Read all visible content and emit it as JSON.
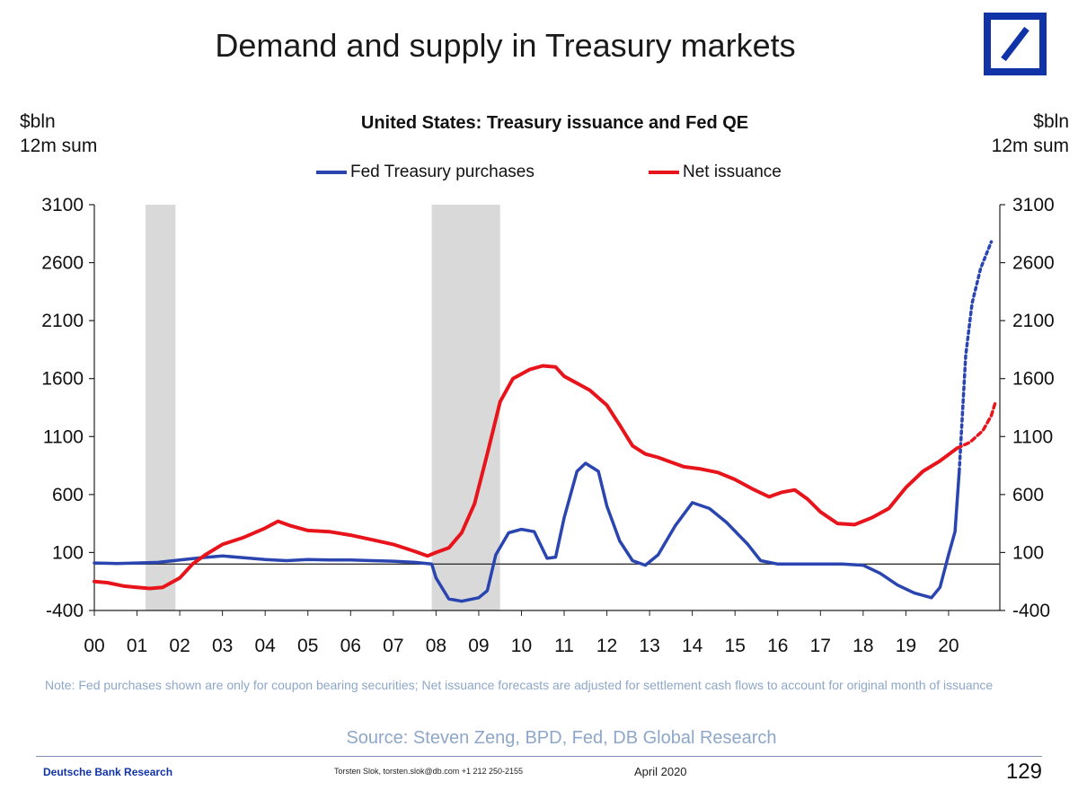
{
  "slide": {
    "title": "Demand and supply in Treasury markets",
    "source": "Source: Steven Zeng, BPD, Fed, DB Global Research",
    "note": "Note: Fed purchases shown are only for coupon bearing securities; Net issuance forecasts are adjusted for settlement cash flows to account for original month of issuance",
    "footer_org": "Deutsche Bank Research",
    "footer_contact": "Torsten Slok, torsten.slok@db.com  +1 212 250-2155",
    "footer_date": "April 2020",
    "page_number": "129"
  },
  "colors": {
    "fed": "#2a45b0",
    "net": "#e8141c",
    "recession": "#d9d9d9",
    "logo": "#1133a8"
  },
  "logo_icon": "deutsche-bank-slash-logo",
  "chart_data": {
    "type": "line",
    "title": "United States: Treasury issuance and Fed QE",
    "ylabel_left": "$bln\n12m sum",
    "ylabel_right": "$bln\n12m sum",
    "ylim": [
      -400,
      3100
    ],
    "y_ticks": [
      -400,
      100,
      600,
      1100,
      1600,
      2100,
      2600,
      3100
    ],
    "x_range": [
      2000,
      2021.2
    ],
    "x_ticks": [
      "00",
      "01",
      "02",
      "03",
      "04",
      "05",
      "06",
      "07",
      "08",
      "09",
      "10",
      "11",
      "12",
      "13",
      "14",
      "15",
      "16",
      "17",
      "18",
      "19",
      "20"
    ],
    "zero_line": 0,
    "recession_shading": [
      [
        2001.2,
        2001.9
      ],
      [
        2007.9,
        2009.5
      ]
    ],
    "legend_position": "top",
    "series": [
      {
        "name": "Fed Treasury purchases",
        "color_key": "fed",
        "points": [
          [
            2000.0,
            10
          ],
          [
            2000.5,
            5
          ],
          [
            2001.0,
            10
          ],
          [
            2001.5,
            15
          ],
          [
            2002.0,
            35
          ],
          [
            2002.5,
            55
          ],
          [
            2003.0,
            70
          ],
          [
            2003.5,
            55
          ],
          [
            2004.0,
            40
          ],
          [
            2004.5,
            30
          ],
          [
            2005.0,
            40
          ],
          [
            2005.5,
            35
          ],
          [
            2006.0,
            35
          ],
          [
            2006.5,
            30
          ],
          [
            2007.0,
            25
          ],
          [
            2007.5,
            15
          ],
          [
            2007.9,
            0
          ],
          [
            2008.0,
            -120
          ],
          [
            2008.3,
            -300
          ],
          [
            2008.6,
            -320
          ],
          [
            2009.0,
            -290
          ],
          [
            2009.2,
            -230
          ],
          [
            2009.4,
            80
          ],
          [
            2009.7,
            270
          ],
          [
            2010.0,
            300
          ],
          [
            2010.3,
            280
          ],
          [
            2010.6,
            50
          ],
          [
            2010.8,
            60
          ],
          [
            2011.0,
            400
          ],
          [
            2011.3,
            800
          ],
          [
            2011.5,
            870
          ],
          [
            2011.8,
            800
          ],
          [
            2012.0,
            500
          ],
          [
            2012.3,
            200
          ],
          [
            2012.6,
            30
          ],
          [
            2012.9,
            -10
          ],
          [
            2013.2,
            80
          ],
          [
            2013.6,
            330
          ],
          [
            2014.0,
            530
          ],
          [
            2014.4,
            480
          ],
          [
            2014.8,
            360
          ],
          [
            2015.3,
            170
          ],
          [
            2015.6,
            30
          ],
          [
            2016.0,
            0
          ],
          [
            2016.5,
            0
          ],
          [
            2017.0,
            0
          ],
          [
            2017.5,
            0
          ],
          [
            2018.0,
            -10
          ],
          [
            2018.4,
            -80
          ],
          [
            2018.8,
            -180
          ],
          [
            2019.2,
            -250
          ],
          [
            2019.6,
            -290
          ],
          [
            2019.8,
            -200
          ],
          [
            2020.0,
            80
          ],
          [
            2020.15,
            280
          ],
          [
            2020.25,
            800
          ]
        ],
        "forecast_points": [
          [
            2020.25,
            800
          ],
          [
            2020.4,
            1800
          ],
          [
            2020.55,
            2250
          ],
          [
            2020.75,
            2550
          ],
          [
            2021.0,
            2780
          ]
        ]
      },
      {
        "name": "Net issuance",
        "color_key": "net",
        "points": [
          [
            2000.0,
            -150
          ],
          [
            2000.3,
            -160
          ],
          [
            2000.7,
            -190
          ],
          [
            2001.0,
            -200
          ],
          [
            2001.3,
            -210
          ],
          [
            2001.6,
            -200
          ],
          [
            2002.0,
            -120
          ],
          [
            2002.3,
            0
          ],
          [
            2002.6,
            80
          ],
          [
            2003.0,
            170
          ],
          [
            2003.5,
            230
          ],
          [
            2004.0,
            310
          ],
          [
            2004.3,
            370
          ],
          [
            2004.6,
            330
          ],
          [
            2005.0,
            290
          ],
          [
            2005.5,
            280
          ],
          [
            2006.0,
            250
          ],
          [
            2006.5,
            210
          ],
          [
            2007.0,
            170
          ],
          [
            2007.5,
            110
          ],
          [
            2007.8,
            70
          ],
          [
            2008.0,
            100
          ],
          [
            2008.3,
            140
          ],
          [
            2008.6,
            270
          ],
          [
            2008.9,
            520
          ],
          [
            2009.2,
            950
          ],
          [
            2009.5,
            1400
          ],
          [
            2009.8,
            1600
          ],
          [
            2010.2,
            1680
          ],
          [
            2010.5,
            1710
          ],
          [
            2010.8,
            1700
          ],
          [
            2011.0,
            1620
          ],
          [
            2011.3,
            1560
          ],
          [
            2011.6,
            1500
          ],
          [
            2012.0,
            1370
          ],
          [
            2012.3,
            1200
          ],
          [
            2012.6,
            1020
          ],
          [
            2012.9,
            950
          ],
          [
            2013.2,
            920
          ],
          [
            2013.5,
            880
          ],
          [
            2013.8,
            840
          ],
          [
            2014.2,
            820
          ],
          [
            2014.6,
            790
          ],
          [
            2015.0,
            730
          ],
          [
            2015.4,
            650
          ],
          [
            2015.8,
            580
          ],
          [
            2016.1,
            620
          ],
          [
            2016.4,
            640
          ],
          [
            2016.7,
            560
          ],
          [
            2017.0,
            450
          ],
          [
            2017.4,
            350
          ],
          [
            2017.8,
            340
          ],
          [
            2018.2,
            400
          ],
          [
            2018.6,
            480
          ],
          [
            2019.0,
            660
          ],
          [
            2019.4,
            800
          ],
          [
            2019.8,
            890
          ],
          [
            2020.2,
            1000
          ]
        ],
        "forecast_points": [
          [
            2020.2,
            1000
          ],
          [
            2020.5,
            1050
          ],
          [
            2020.8,
            1150
          ],
          [
            2021.0,
            1280
          ],
          [
            2021.1,
            1400
          ]
        ]
      }
    ]
  }
}
